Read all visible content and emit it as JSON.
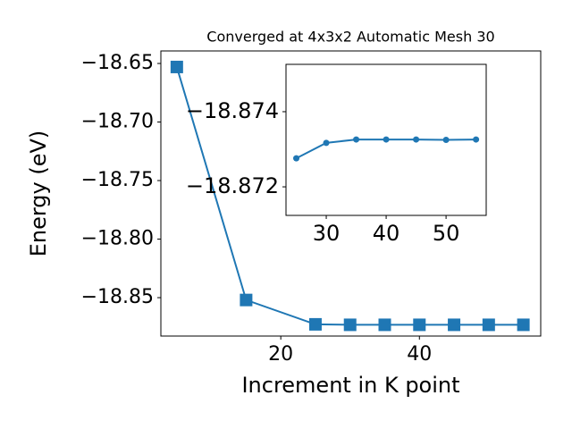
{
  "chart_data": [
    {
      "type": "line",
      "title": "Converged at 4x3x2 Automatic Mesh 30",
      "x_label": "Increment in K point",
      "y_label": "Energy (eV)",
      "x": [
        5,
        15,
        25,
        30,
        35,
        40,
        45,
        50,
        55
      ],
      "series": [
        {
          "color": "#1f77b4",
          "marker": "square",
          "values": [
            -18.653,
            -18.852,
            -18.8728,
            -18.8732,
            -18.8732,
            -18.8732,
            -18.8732,
            -18.8732,
            -18.8732
          ]
        }
      ],
      "xlim": [
        2.7,
        57.5
      ],
      "ylim": [
        -18.8828,
        -18.6393
      ],
      "xticks": [
        20,
        40
      ],
      "yticks": [
        {
          "value": -18.85,
          "label": "−18.85"
        },
        {
          "value": -18.8,
          "label": "−18.80"
        },
        {
          "value": -18.75,
          "label": "−18.75"
        },
        {
          "value": -18.7,
          "label": "−18.70"
        },
        {
          "value": -18.65,
          "label": "−18.65"
        }
      ]
    },
    {
      "type": "line",
      "x": [
        25,
        30,
        35,
        40,
        45,
        50,
        55
      ],
      "series": [
        {
          "color": "#1f77b4",
          "marker": "circle",
          "values": [
            -18.87276,
            -18.87317,
            -18.87326,
            -18.87326,
            -18.87326,
            -18.87325,
            -18.87326
          ]
        }
      ],
      "xlim": [
        23.28,
        56.7
      ],
      "ylim": [
        -18.87124,
        -18.87526
      ],
      "xticks": [
        30,
        40,
        50
      ],
      "yticks": [
        {
          "value": -18.872,
          "label": "−18.872"
        },
        {
          "value": -18.874,
          "label": "−18.874"
        }
      ]
    }
  ]
}
